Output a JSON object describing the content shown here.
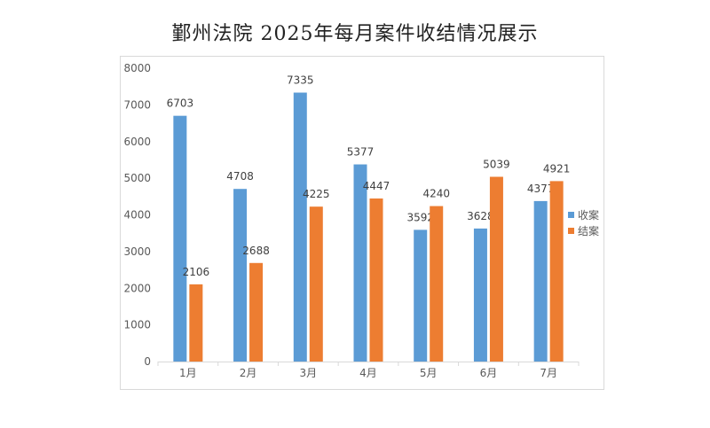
{
  "chart_data": {
    "type": "bar",
    "title": "鄞州法院 2025年每月案件收结情况展示",
    "categories": [
      "1月",
      "2月",
      "3月",
      "4月",
      "5月",
      "6月",
      "7月"
    ],
    "series": [
      {
        "name": "收案",
        "color": "#5b9bd5",
        "values": [
          6703,
          4708,
          7335,
          5377,
          3592,
          3628,
          4377
        ]
      },
      {
        "name": "结案",
        "color": "#ed7d31",
        "values": [
          2106,
          2688,
          4225,
          4447,
          4240,
          5039,
          4921
        ]
      }
    ],
    "ylim": [
      0,
      8000
    ],
    "yticks": [
      "0",
      "1000",
      "2000",
      "3000",
      "4000",
      "5000",
      "6000",
      "7000",
      "8000"
    ],
    "grid": false,
    "legend": "right"
  }
}
